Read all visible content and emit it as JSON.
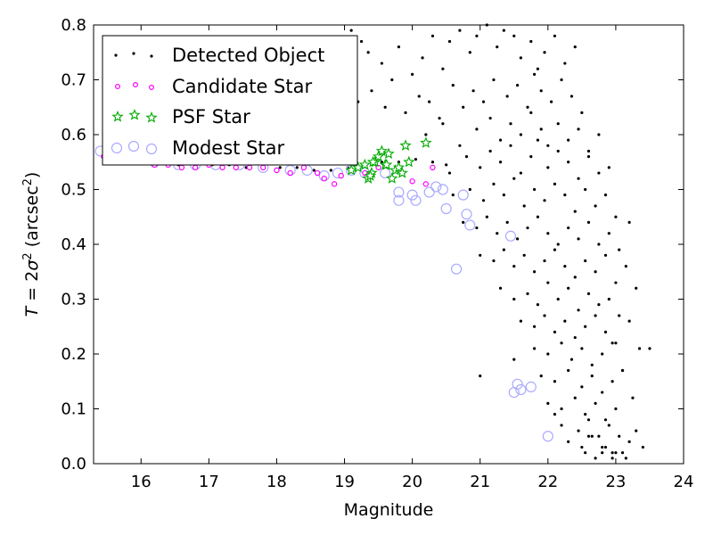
{
  "chart_data": {
    "type": "scatter",
    "xlabel": "Magnitude",
    "ylabel_parts": [
      "T",
      " = 2",
      "σ",
      "2",
      " (arcsec",
      "2",
      ")"
    ],
    "xlim": [
      15.3,
      24
    ],
    "ylim": [
      0.0,
      0.8
    ],
    "xticks": [
      "16",
      "17",
      "18",
      "19",
      "20",
      "21",
      "22",
      "23",
      "24"
    ],
    "yticks": [
      "0.0",
      "0.1",
      "0.2",
      "0.3",
      "0.4",
      "0.5",
      "0.6",
      "0.7",
      "0.8"
    ],
    "grid": false,
    "legend_position": "top-left",
    "series": [
      {
        "name": "Detected Object",
        "marker": "dot",
        "color": "#000000",
        "x": [
          15.45,
          15.7,
          15.9,
          16.1,
          16.3,
          16.55,
          16.8,
          17.05,
          17.3,
          17.55,
          17.8,
          18.05,
          18.3,
          18.55,
          18.8,
          19.05,
          19.3,
          19.55,
          19.8,
          20.05,
          20.3,
          20.5,
          19.1,
          19.25,
          19.35,
          19.55,
          19.7,
          19.8,
          20.0,
          20.15,
          20.3,
          20.45,
          20.55,
          20.7,
          20.85,
          20.95,
          21.1,
          21.25,
          21.35,
          21.5,
          21.6,
          21.75,
          21.85,
          21.95,
          22.1,
          22.25,
          22.4,
          19.2,
          19.4,
          19.6,
          19.9,
          20.1,
          20.25,
          20.4,
          20.6,
          20.75,
          20.9,
          21.05,
          21.2,
          21.4,
          21.55,
          21.7,
          21.8,
          21.9,
          22.05,
          22.2,
          22.35,
          22.5,
          20.2,
          20.45,
          20.7,
          20.95,
          21.15,
          21.3,
          21.45,
          21.6,
          21.75,
          21.9,
          22.0,
          22.15,
          22.3,
          22.45,
          22.6,
          22.75,
          20.55,
          20.8,
          21.0,
          21.15,
          21.3,
          21.45,
          21.6,
          21.75,
          21.85,
          22.0,
          22.15,
          22.3,
          22.45,
          22.6,
          22.75,
          22.9,
          20.6,
          20.85,
          21.05,
          21.2,
          21.35,
          21.5,
          21.65,
          21.8,
          21.95,
          22.1,
          22.25,
          22.4,
          22.55,
          22.7,
          22.85,
          23.0,
          20.75,
          20.95,
          21.1,
          21.25,
          21.4,
          21.55,
          21.7,
          21.85,
          22.0,
          22.15,
          22.3,
          22.45,
          22.6,
          22.75,
          22.9,
          23.05,
          23.2,
          21.0,
          21.2,
          21.35,
          21.5,
          21.65,
          21.8,
          21.95,
          22.1,
          22.25,
          22.4,
          22.55,
          22.7,
          22.85,
          23.0,
          23.15,
          21.3,
          21.5,
          21.7,
          21.85,
          22.0,
          22.15,
          22.3,
          22.45,
          22.6,
          22.75,
          22.9,
          23.05,
          23.3,
          21.6,
          21.8,
          21.95,
          22.1,
          22.25,
          22.4,
          22.55,
          22.7,
          22.85,
          23.0,
          23.2,
          21.8,
          22.0,
          22.2,
          22.35,
          22.5,
          22.65,
          22.8,
          22.95,
          23.1,
          23.35,
          21.9,
          22.1,
          22.3,
          22.5,
          22.65,
          22.8,
          22.95,
          23.1,
          23.5,
          22.0,
          22.2,
          22.4,
          22.55,
          22.7,
          22.85,
          23.0,
          23.25,
          22.2,
          22.45,
          22.6,
          22.75,
          22.9,
          23.05,
          23.3,
          22.3,
          22.5,
          22.65,
          22.8,
          22.95,
          23.2,
          22.55,
          22.7,
          22.85,
          23.0,
          23.15,
          23.4,
          22.6,
          22.8,
          22.95,
          23.1,
          21.0,
          21.5,
          22.1
        ],
        "y": [
          0.57,
          0.56,
          0.555,
          0.55,
          0.55,
          0.545,
          0.545,
          0.545,
          0.545,
          0.54,
          0.54,
          0.54,
          0.54,
          0.535,
          0.535,
          0.54,
          0.545,
          0.55,
          0.55,
          0.555,
          0.55,
          0.545,
          0.79,
          0.77,
          0.75,
          0.73,
          0.7,
          0.76,
          0.71,
          0.74,
          0.78,
          0.72,
          0.77,
          0.79,
          0.75,
          0.78,
          0.8,
          0.76,
          0.79,
          0.78,
          0.74,
          0.77,
          0.72,
          0.75,
          0.78,
          0.73,
          0.76,
          0.66,
          0.68,
          0.65,
          0.64,
          0.67,
          0.66,
          0.63,
          0.69,
          0.65,
          0.68,
          0.66,
          0.7,
          0.67,
          0.69,
          0.65,
          0.71,
          0.68,
          0.66,
          0.7,
          0.67,
          0.64,
          0.6,
          0.62,
          0.58,
          0.61,
          0.63,
          0.59,
          0.62,
          0.6,
          0.64,
          0.61,
          0.58,
          0.62,
          0.59,
          0.61,
          0.57,
          0.6,
          0.53,
          0.56,
          0.54,
          0.57,
          0.55,
          0.58,
          0.53,
          0.56,
          0.59,
          0.54,
          0.57,
          0.55,
          0.52,
          0.56,
          0.53,
          0.54,
          0.49,
          0.5,
          0.48,
          0.51,
          0.49,
          0.52,
          0.47,
          0.5,
          0.48,
          0.51,
          0.49,
          0.46,
          0.5,
          0.47,
          0.49,
          0.45,
          0.44,
          0.43,
          0.45,
          0.42,
          0.44,
          0.41,
          0.43,
          0.45,
          0.42,
          0.4,
          0.43,
          0.41,
          0.44,
          0.4,
          0.42,
          0.39,
          0.44,
          0.38,
          0.37,
          0.39,
          0.36,
          0.38,
          0.35,
          0.37,
          0.39,
          0.36,
          0.34,
          0.37,
          0.35,
          0.38,
          0.33,
          0.36,
          0.32,
          0.3,
          0.31,
          0.29,
          0.33,
          0.3,
          0.32,
          0.28,
          0.31,
          0.29,
          0.3,
          0.27,
          0.32,
          0.26,
          0.25,
          0.27,
          0.24,
          0.26,
          0.23,
          0.25,
          0.27,
          0.24,
          0.22,
          0.26,
          0.21,
          0.2,
          0.22,
          0.19,
          0.21,
          0.18,
          0.2,
          0.22,
          0.17,
          0.21,
          0.16,
          0.15,
          0.17,
          0.14,
          0.16,
          0.13,
          0.15,
          0.17,
          0.21,
          0.11,
          0.1,
          0.12,
          0.09,
          0.11,
          0.08,
          0.1,
          0.12,
          0.07,
          0.06,
          0.08,
          0.05,
          0.07,
          0.05,
          0.06,
          0.04,
          0.03,
          0.05,
          0.03,
          0.02,
          0.04,
          0.02,
          0.01,
          0.03,
          0.02,
          0.01,
          0.03,
          0.05,
          0.02,
          0.01,
          0.02,
          0.16,
          0.19,
          0.09
        ]
      },
      {
        "name": "Candidate Star",
        "marker": "circle-small",
        "color": "#ff00ff",
        "x": [
          15.45,
          15.75,
          16.0,
          16.2,
          16.4,
          16.6,
          16.8,
          17.0,
          17.2,
          17.4,
          17.6,
          17.8,
          18.0,
          18.2,
          18.4,
          18.6,
          18.7,
          18.85,
          18.95,
          19.1,
          19.3,
          19.5,
          19.7,
          19.85,
          20.0,
          20.2,
          20.3
        ],
        "y": [
          0.56,
          0.555,
          0.55,
          0.545,
          0.545,
          0.54,
          0.54,
          0.545,
          0.54,
          0.54,
          0.54,
          0.54,
          0.535,
          0.53,
          0.54,
          0.53,
          0.52,
          0.51,
          0.525,
          0.535,
          0.53,
          0.54,
          0.52,
          0.53,
          0.515,
          0.51,
          0.54
        ]
      },
      {
        "name": "PSF Star",
        "marker": "star",
        "color": "#00aa00",
        "x": [
          19.1,
          19.2,
          19.3,
          19.35,
          19.4,
          19.45,
          19.5,
          19.55,
          19.6,
          19.65,
          19.7,
          19.75,
          19.8,
          19.85,
          19.9,
          19.95,
          20.2,
          19.38,
          19.42,
          19.62
        ],
        "y": [
          0.535,
          0.54,
          0.545,
          0.52,
          0.53,
          0.55,
          0.56,
          0.57,
          0.545,
          0.565,
          0.52,
          0.535,
          0.54,
          0.53,
          0.58,
          0.55,
          0.585,
          0.525,
          0.55,
          0.545
        ]
      },
      {
        "name": "Modest Star",
        "marker": "circle-large",
        "color": "#aaaaff",
        "x": [
          15.4,
          15.95,
          16.2,
          16.55,
          16.8,
          17.1,
          17.45,
          17.8,
          18.2,
          18.45,
          18.7,
          18.9,
          19.1,
          19.3,
          19.6,
          19.8,
          19.8,
          20.0,
          20.05,
          20.25,
          20.35,
          20.45,
          20.5,
          20.75,
          20.8,
          20.85,
          20.65,
          21.45,
          21.5,
          21.55,
          21.6,
          21.75,
          22.0
        ],
        "y": [
          0.57,
          0.575,
          0.55,
          0.545,
          0.545,
          0.545,
          0.545,
          0.54,
          0.535,
          0.535,
          0.525,
          0.53,
          0.535,
          0.53,
          0.53,
          0.495,
          0.48,
          0.49,
          0.48,
          0.495,
          0.505,
          0.5,
          0.465,
          0.49,
          0.455,
          0.435,
          0.355,
          0.415,
          0.13,
          0.145,
          0.135,
          0.14,
          0.05
        ]
      }
    ]
  }
}
